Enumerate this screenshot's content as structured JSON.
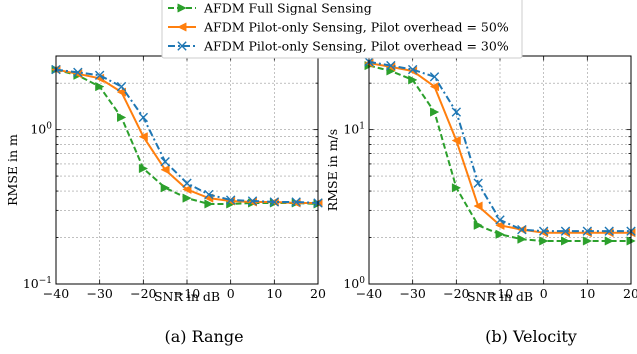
{
  "legend": {
    "items": [
      {
        "label": "AFDM Full Signal Sensing"
      },
      {
        "label": "AFDM Pilot-only Sensing, Pilot overhead = 50%"
      },
      {
        "label": "AFDM Pilot-only Sensing, Pilot overhead = 30%"
      }
    ]
  },
  "colors": {
    "green": "#2ca02c",
    "orange": "#ff7f0e",
    "blue": "#1f77b4"
  },
  "chart_data": [
    {
      "type": "line",
      "caption": "(a) Range",
      "xlabel": "SNR in dB",
      "ylabel": "RMSE in m",
      "xlim": [
        -40,
        20
      ],
      "ylim": [
        0.1,
        3
      ],
      "yscale": "log",
      "xticks": [
        -40,
        -30,
        -20,
        -10,
        0,
        10,
        20
      ],
      "xtick_labels": [
        "−40",
        "−30",
        "−20",
        "−10",
        "0",
        "10",
        "20"
      ],
      "yticks": [
        {
          "value": 0.1,
          "base": "10",
          "exp": "−1"
        },
        {
          "value": 1,
          "base": "10",
          "exp": "0"
        }
      ],
      "grid": true,
      "x": [
        -40,
        -35,
        -30,
        -25,
        -20,
        -15,
        -10,
        -5,
        0,
        5,
        10,
        15,
        20
      ],
      "series": [
        {
          "name": "AFDM Full Signal Sensing",
          "color": "#2ca02c",
          "marker": "triangle",
          "dash": "dashed",
          "values": [
            2.45,
            2.25,
            1.9,
            1.2,
            0.56,
            0.42,
            0.36,
            0.33,
            0.33,
            0.335,
            0.335,
            0.335,
            0.33
          ]
        },
        {
          "name": "AFDM Pilot-only Sensing, Pilot overhead = 50%",
          "color": "#ff7f0e",
          "marker": "left-triangle",
          "dash": "solid",
          "values": [
            2.45,
            2.3,
            2.15,
            1.75,
            0.9,
            0.55,
            0.41,
            0.36,
            0.345,
            0.34,
            0.34,
            0.335,
            0.335
          ]
        },
        {
          "name": "AFDM Pilot-only Sensing, Pilot overhead = 30%",
          "color": "#1f77b4",
          "marker": "x",
          "dash": "dashdot",
          "values": [
            2.45,
            2.35,
            2.25,
            1.9,
            1.2,
            0.62,
            0.45,
            0.38,
            0.35,
            0.345,
            0.34,
            0.34,
            0.335
          ]
        }
      ]
    },
    {
      "type": "line",
      "caption": "(b) Velocity",
      "xlabel": "SNR in dB",
      "ylabel": "RMSE in m/s",
      "xlim": [
        -40,
        20
      ],
      "ylim": [
        1,
        30
      ],
      "yscale": "log",
      "xticks": [
        -40,
        -30,
        -20,
        -10,
        0,
        10,
        20
      ],
      "xtick_labels": [
        "−40",
        "−30",
        "−20",
        "−10",
        "0",
        "10",
        "20"
      ],
      "yticks": [
        {
          "value": 1,
          "base": "10",
          "exp": "0"
        },
        {
          "value": 10,
          "base": "10",
          "exp": "1"
        }
      ],
      "grid": true,
      "x": [
        -40,
        -35,
        -30,
        -25,
        -20,
        -15,
        -10,
        -5,
        0,
        5,
        10,
        15,
        20
      ],
      "series": [
        {
          "name": "AFDM Full Signal Sensing",
          "color": "#2ca02c",
          "marker": "triangle",
          "dash": "dashed",
          "values": [
            26,
            24,
            21,
            13,
            4.2,
            2.4,
            2.1,
            1.95,
            1.9,
            1.9,
            1.9,
            1.9,
            1.9
          ]
        },
        {
          "name": "AFDM Pilot-only Sensing, Pilot overhead = 50%",
          "color": "#ff7f0e",
          "marker": "left-triangle",
          "dash": "solid",
          "values": [
            27,
            25.5,
            24,
            19,
            8.5,
            3.2,
            2.4,
            2.25,
            2.15,
            2.15,
            2.15,
            2.15,
            2.15
          ]
        },
        {
          "name": "AFDM Pilot-only Sensing, Pilot overhead = 30%",
          "color": "#1f77b4",
          "marker": "x",
          "dash": "dashdot",
          "values": [
            27.5,
            26,
            24.5,
            22,
            13,
            4.5,
            2.6,
            2.25,
            2.2,
            2.2,
            2.2,
            2.2,
            2.2
          ]
        }
      ]
    }
  ]
}
